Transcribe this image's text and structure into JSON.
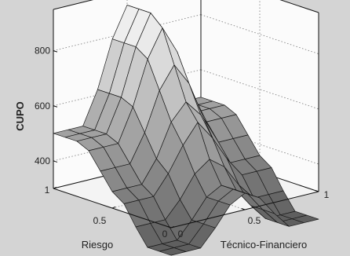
{
  "chart_data": {
    "type": "surface",
    "title": "",
    "xlabel": "Técnico-Financiero",
    "ylabel": "Riesgo",
    "zlabel": "CUPO",
    "x_ticks": [
      "0",
      "0.5",
      "1"
    ],
    "y_ticks": [
      "0",
      "0.5",
      "1"
    ],
    "z_ticks": [
      "400",
      "600",
      "800"
    ],
    "x": [
      0,
      0.1,
      0.2,
      0.3,
      0.4,
      0.5,
      0.6,
      0.7,
      0.8,
      0.9,
      1
    ],
    "y": [
      0,
      0.1,
      0.2,
      0.3,
      0.4,
      0.5,
      0.6,
      0.7,
      0.8,
      0.9,
      1
    ],
    "z": [
      [
        200,
        200,
        200,
        260,
        330,
        360,
        330,
        260,
        200,
        200,
        200
      ],
      [
        200,
        200,
        200,
        260,
        330,
        360,
        330,
        260,
        200,
        200,
        200
      ],
      [
        200,
        200,
        200,
        260,
        330,
        360,
        330,
        260,
        200,
        200,
        200
      ],
      [
        260,
        260,
        260,
        320,
        400,
        440,
        400,
        320,
        260,
        260,
        260
      ],
      [
        330,
        330,
        330,
        400,
        490,
        560,
        490,
        400,
        330,
        330,
        330
      ],
      [
        360,
        360,
        360,
        440,
        560,
        620,
        560,
        440,
        360,
        360,
        360
      ],
      [
        420,
        420,
        420,
        520,
        660,
        740,
        660,
        520,
        420,
        420,
        420
      ],
      [
        480,
        480,
        480,
        600,
        760,
        860,
        760,
        600,
        480,
        480,
        480
      ],
      [
        500,
        500,
        500,
        620,
        790,
        900,
        790,
        620,
        500,
        500,
        500
      ],
      [
        500,
        500,
        500,
        620,
        790,
        900,
        790,
        620,
        500,
        500,
        500
      ],
      [
        500,
        500,
        500,
        620,
        790,
        900,
        790,
        620,
        500,
        500,
        500
      ]
    ],
    "xlim": [
      0,
      1
    ],
    "ylim": [
      0,
      1
    ],
    "zlim": [
      300,
      950
    ],
    "grid": true,
    "colormap": "gray"
  }
}
